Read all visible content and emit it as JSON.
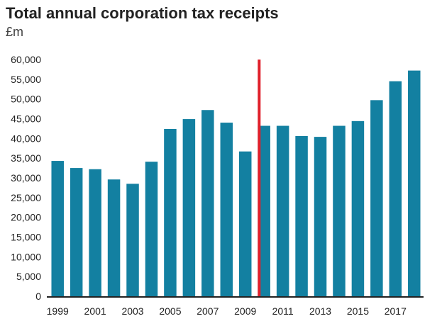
{
  "chart_data": {
    "type": "bar",
    "title": "Total annual corporation tax receipts",
    "subtitle": "£m",
    "categories": [
      "1999",
      "2000",
      "2001",
      "2002",
      "2003",
      "2004",
      "2005",
      "2006",
      "2007",
      "2008",
      "2009",
      "2010",
      "2011",
      "2012",
      "2013",
      "2014",
      "2015",
      "2016",
      "2017",
      "2018"
    ],
    "values": [
      34300,
      32500,
      32200,
      29600,
      28500,
      34100,
      42400,
      44900,
      47200,
      44000,
      36700,
      43200,
      43200,
      40600,
      40400,
      43200,
      44400,
      49700,
      54500,
      57200
    ],
    "x_tick_labels": [
      "1999",
      "2001",
      "2003",
      "2005",
      "2007",
      "2009",
      "2011",
      "2013",
      "2015",
      "2017"
    ],
    "y_ticks": [
      0,
      5000,
      10000,
      15000,
      20000,
      25000,
      30000,
      35000,
      40000,
      45000,
      50000,
      55000,
      60000
    ],
    "y_tick_labels": [
      "0",
      "5,000",
      "10,000",
      "15,000",
      "20,000",
      "25,000",
      "30,000",
      "35,000",
      "40,000",
      "45,000",
      "50,000",
      "55,000",
      "60,000"
    ],
    "ylim": [
      0,
      60000
    ],
    "xlabel": "",
    "ylabel": "",
    "grid": false,
    "bar_color": "#1380A1",
    "marker_line": {
      "between": [
        "2009",
        "2010"
      ],
      "color": "#E0202B"
    }
  }
}
